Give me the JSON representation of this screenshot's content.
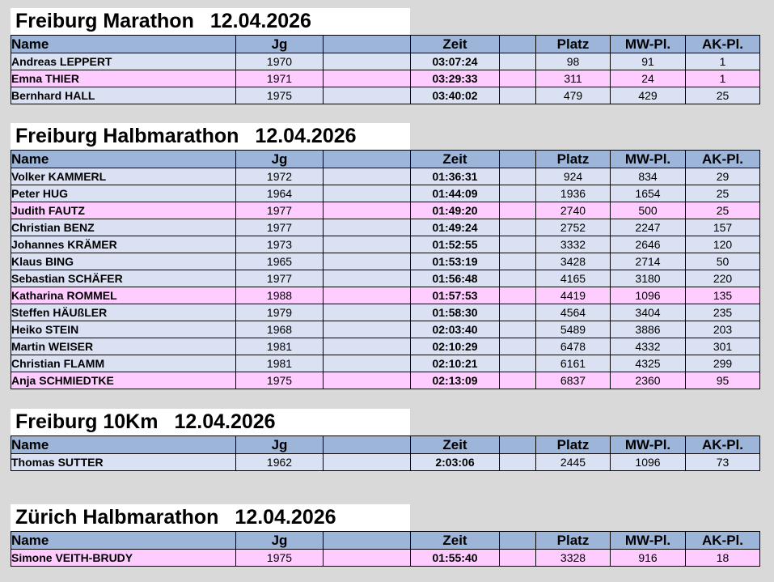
{
  "headers": {
    "name": "Name",
    "jg": "Jg",
    "zeit": "Zeit",
    "platz": "Platz",
    "mw": "MW-Pl.",
    "ak": "AK-Pl."
  },
  "colors": {
    "background": "#d9d9d9",
    "header": "#9db5d9",
    "male_row": "#d9e1f2",
    "female_row": "#ffccff"
  },
  "sections": [
    {
      "event": "Freiburg Marathon",
      "date": "12.04.2026",
      "rows": [
        {
          "name": "Andreas LEPPERT",
          "jg": "1970",
          "zeit": "03:07:24",
          "platz": "98",
          "mw": "91",
          "ak": "1",
          "gender": "m"
        },
        {
          "name": "Emna THIER",
          "jg": "1971",
          "zeit": "03:29:33",
          "platz": "311",
          "mw": "24",
          "ak": "1",
          "gender": "f"
        },
        {
          "name": "Bernhard HALL",
          "jg": "1975",
          "zeit": "03:40:02",
          "platz": "479",
          "mw": "429",
          "ak": "25",
          "gender": "m"
        }
      ]
    },
    {
      "event": "Freiburg Halbmarathon",
      "date": "12.04.2026",
      "rows": [
        {
          "name": "Volker KAMMERL",
          "jg": "1972",
          "zeit": "01:36:31",
          "platz": "924",
          "mw": "834",
          "ak": "29",
          "gender": "m"
        },
        {
          "name": "Peter HUG",
          "jg": "1964",
          "zeit": "01:44:09",
          "platz": "1936",
          "mw": "1654",
          "ak": "25",
          "gender": "m"
        },
        {
          "name": "Judith FAUTZ",
          "jg": "1977",
          "zeit": "01:49:20",
          "platz": "2740",
          "mw": "500",
          "ak": "25",
          "gender": "f"
        },
        {
          "name": "Christian BENZ",
          "jg": "1977",
          "zeit": "01:49:24",
          "platz": "2752",
          "mw": "2247",
          "ak": "157",
          "gender": "m"
        },
        {
          "name": "Johannes KRÄMER",
          "jg": "1973",
          "zeit": "01:52:55",
          "platz": "3332",
          "mw": "2646",
          "ak": "120",
          "gender": "m"
        },
        {
          "name": "Klaus BING",
          "jg": "1965",
          "zeit": "01:53:19",
          "platz": "3428",
          "mw": "2714",
          "ak": "50",
          "gender": "m"
        },
        {
          "name": "Sebastian SCHÄFER",
          "jg": "1977",
          "zeit": "01:56:48",
          "platz": "4165",
          "mw": "3180",
          "ak": "220",
          "gender": "m"
        },
        {
          "name": "Katharina ROMMEL",
          "jg": "1988",
          "zeit": "01:57:53",
          "platz": "4419",
          "mw": "1096",
          "ak": "135",
          "gender": "f"
        },
        {
          "name": "Steffen HÄUßLER",
          "jg": "1979",
          "zeit": "01:58:30",
          "platz": "4564",
          "mw": "3404",
          "ak": "235",
          "gender": "m"
        },
        {
          "name": "Heiko STEIN",
          "jg": "1968",
          "zeit": "02:03:40",
          "platz": "5489",
          "mw": "3886",
          "ak": "203",
          "gender": "m"
        },
        {
          "name": "Martin WEISER",
          "jg": "1981",
          "zeit": "02:10:29",
          "platz": "6478",
          "mw": "4332",
          "ak": "301",
          "gender": "m"
        },
        {
          "name": "Christian FLAMM",
          "jg": "1981",
          "zeit": "02:10:21",
          "platz": "6161",
          "mw": "4325",
          "ak": "299",
          "gender": "m"
        },
        {
          "name": "Anja SCHMIEDTKE",
          "jg": "1975",
          "zeit": "02:13:09",
          "platz": "6837",
          "mw": "2360",
          "ak": "95",
          "gender": "f"
        }
      ]
    },
    {
      "event": "Freiburg 10Km",
      "date": "12.04.2026",
      "rows": [
        {
          "name": "Thomas SUTTER",
          "jg": "1962",
          "zeit": "2:03:06",
          "platz": "2445",
          "mw": "1096",
          "ak": "73",
          "gender": "m"
        }
      ]
    },
    {
      "event": "Zürich Halbmarathon",
      "date": "12.04.2026",
      "rows": [
        {
          "name": "Simone VEITH-BRUDY",
          "jg": "1975",
          "zeit": "01:55:40",
          "platz": "3328",
          "mw": "916",
          "ak": "18",
          "gender": "f"
        }
      ]
    }
  ]
}
